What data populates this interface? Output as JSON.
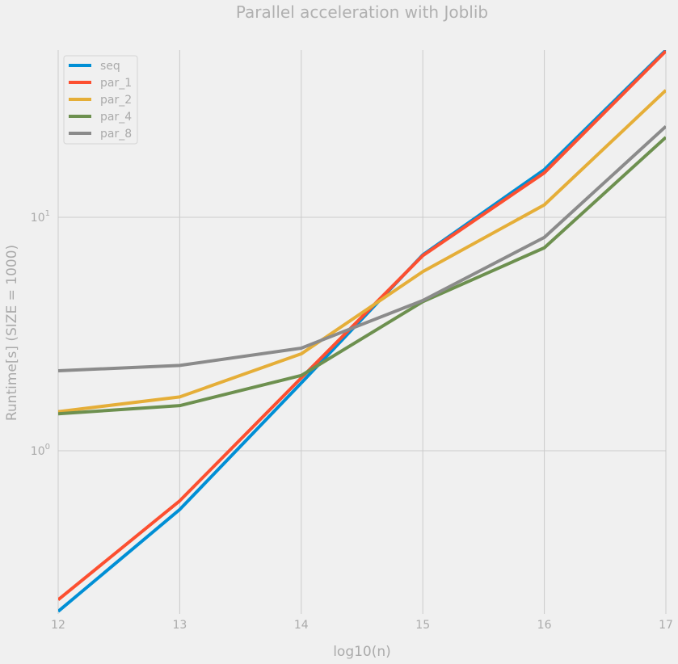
{
  "chart_data": {
    "type": "line",
    "title": "Parallel acceleration with Joblib",
    "xlabel": "log10(n)",
    "ylabel": "Runtime[s] (SIZE = 1000)",
    "x": [
      12,
      13,
      14,
      15,
      16,
      17
    ],
    "xlim": [
      12,
      17
    ],
    "ylim": [
      0.2,
      52
    ],
    "yscale": "log",
    "grid": true,
    "legend_position": "top-left",
    "x_ticks": [
      12,
      13,
      14,
      15,
      16,
      17
    ],
    "y_ticks": [
      {
        "value": 1,
        "label_base": "10",
        "label_exp": "0"
      },
      {
        "value": 10,
        "label_base": "10",
        "label_exp": "1"
      }
    ],
    "series": [
      {
        "name": "seq",
        "color": "#008fd5",
        "values": [
          0.205,
          0.56,
          1.95,
          6.9,
          16.0,
          52.0
        ]
      },
      {
        "name": "par_1",
        "color": "#fc4f30",
        "values": [
          0.23,
          0.61,
          2.05,
          6.85,
          15.5,
          51.5
        ]
      },
      {
        "name": "par_2",
        "color": "#e5ae38",
        "values": [
          1.47,
          1.7,
          2.6,
          5.85,
          11.3,
          35.0
        ]
      },
      {
        "name": "par_4",
        "color": "#6d904f",
        "values": [
          1.44,
          1.56,
          2.1,
          4.35,
          7.4,
          22.0
        ]
      },
      {
        "name": "par_8",
        "color": "#8b8b8b",
        "values": [
          2.2,
          2.32,
          2.75,
          4.4,
          8.2,
          24.5
        ]
      }
    ]
  }
}
